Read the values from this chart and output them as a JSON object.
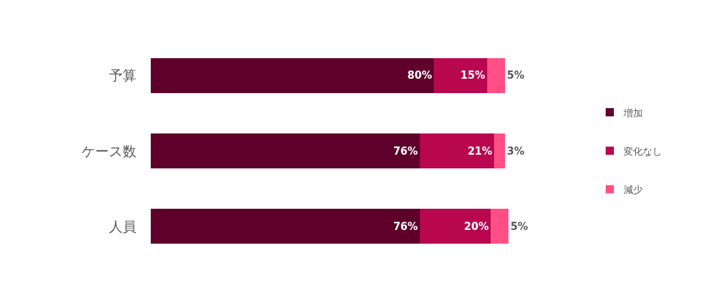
{
  "chart_data": {
    "type": "bar",
    "orientation": "horizontal",
    "stacked": true,
    "legend": "right",
    "categories": [
      "予算",
      "ケース数",
      "人員"
    ],
    "series": [
      {
        "name": "増加",
        "color": "#5e0029",
        "values": [
          80,
          76,
          76
        ],
        "value_labels": [
          "80%",
          "76%",
          "76%"
        ]
      },
      {
        "name": "変化なし",
        "color": "#b8074f",
        "values": [
          15,
          21,
          20
        ],
        "value_labels": [
          "15%",
          "21%",
          "20%"
        ]
      },
      {
        "name": "減少",
        "color": "#ff4f84",
        "values": [
          5,
          3,
          5
        ],
        "value_labels": [
          "5%",
          "3%",
          "5%"
        ]
      }
    ]
  }
}
